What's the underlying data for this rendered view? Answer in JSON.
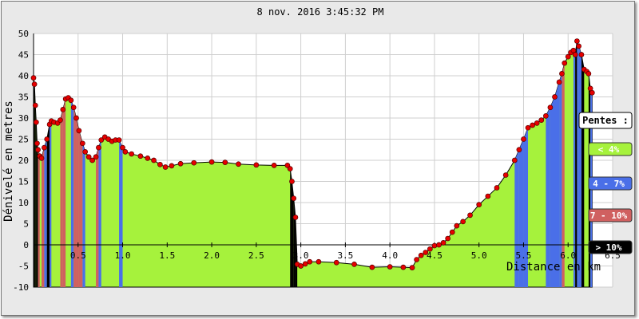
{
  "chart_data": {
    "type": "area",
    "title": "8 nov. 2016 3:45:32 PM",
    "xlabel": "Distance en km",
    "ylabel": "Dénivelé en metres",
    "xlim": [
      0,
      6.5
    ],
    "ylim": [
      -10,
      50
    ],
    "x_ticks": [
      "0.5",
      "1.0",
      "1.5",
      "2.0",
      "2.5",
      "3.0",
      "3.5",
      "4.0",
      "4.5",
      "5.0",
      "5.5",
      "6.0",
      "6.5"
    ],
    "y_ticks": [
      "50",
      "45",
      "40",
      "35",
      "30",
      "25",
      "20",
      "15",
      "10",
      "5",
      "0",
      "-5",
      "-10"
    ],
    "grid": true,
    "profile": [
      [
        0.0,
        39.5
      ],
      [
        0.01,
        38
      ],
      [
        0.02,
        33
      ],
      [
        0.03,
        29
      ],
      [
        0.04,
        24
      ],
      [
        0.05,
        22.5
      ],
      [
        0.07,
        21
      ],
      [
        0.09,
        20.5
      ],
      [
        0.12,
        23
      ],
      [
        0.15,
        25
      ],
      [
        0.18,
        28.5
      ],
      [
        0.2,
        29.3
      ],
      [
        0.23,
        29
      ],
      [
        0.27,
        28.8
      ],
      [
        0.3,
        29.5
      ],
      [
        0.33,
        32
      ],
      [
        0.36,
        34.5
      ],
      [
        0.39,
        34.8
      ],
      [
        0.42,
        34.2
      ],
      [
        0.45,
        32.5
      ],
      [
        0.48,
        30
      ],
      [
        0.51,
        27
      ],
      [
        0.55,
        24
      ],
      [
        0.58,
        22
      ],
      [
        0.62,
        20.8
      ],
      [
        0.66,
        20
      ],
      [
        0.7,
        20.8
      ],
      [
        0.73,
        23
      ],
      [
        0.76,
        24.8
      ],
      [
        0.8,
        25.5
      ],
      [
        0.84,
        25
      ],
      [
        0.88,
        24.5
      ],
      [
        0.92,
        24.8
      ],
      [
        0.96,
        24.8
      ],
      [
        1.0,
        23
      ],
      [
        1.03,
        22
      ],
      [
        1.1,
        21.5
      ],
      [
        1.2,
        21
      ],
      [
        1.28,
        20.5
      ],
      [
        1.35,
        20
      ],
      [
        1.42,
        19
      ],
      [
        1.48,
        18.4
      ],
      [
        1.55,
        18.7
      ],
      [
        1.65,
        19.2
      ],
      [
        1.8,
        19.4
      ],
      [
        2.0,
        19.6
      ],
      [
        2.15,
        19.5
      ],
      [
        2.3,
        19.1
      ],
      [
        2.5,
        18.9
      ],
      [
        2.7,
        18.8
      ],
      [
        2.85,
        18.8
      ],
      [
        2.88,
        18
      ],
      [
        2.9,
        15
      ],
      [
        2.92,
        11
      ],
      [
        2.94,
        6.5
      ],
      [
        2.96,
        -4.6
      ],
      [
        3.0,
        -5
      ],
      [
        3.05,
        -4.5
      ],
      [
        3.1,
        -4
      ],
      [
        3.2,
        -4
      ],
      [
        3.4,
        -4.2
      ],
      [
        3.6,
        -4.6
      ],
      [
        3.8,
        -5.3
      ],
      [
        4.0,
        -5.2
      ],
      [
        4.15,
        -5.3
      ],
      [
        4.25,
        -5.4
      ],
      [
        4.3,
        -3.5
      ],
      [
        4.35,
        -2.5
      ],
      [
        4.4,
        -1.8
      ],
      [
        4.45,
        -1
      ],
      [
        4.5,
        -0.2
      ],
      [
        4.55,
        0
      ],
      [
        4.6,
        0.5
      ],
      [
        4.65,
        1.5
      ],
      [
        4.7,
        3
      ],
      [
        4.75,
        4.5
      ],
      [
        4.82,
        5.5
      ],
      [
        4.9,
        7
      ],
      [
        5.0,
        9.5
      ],
      [
        5.1,
        11.5
      ],
      [
        5.2,
        13.5
      ],
      [
        5.3,
        16.5
      ],
      [
        5.4,
        20
      ],
      [
        5.45,
        22.5
      ],
      [
        5.5,
        25
      ],
      [
        5.55,
        27.7
      ],
      [
        5.6,
        28.3
      ],
      [
        5.65,
        28.8
      ],
      [
        5.7,
        29.5
      ],
      [
        5.75,
        30.5
      ],
      [
        5.8,
        32.5
      ],
      [
        5.85,
        35
      ],
      [
        5.9,
        38.5
      ],
      [
        5.93,
        40.5
      ],
      [
        5.96,
        43
      ],
      [
        6.0,
        44.5
      ],
      [
        6.03,
        45.5
      ],
      [
        6.06,
        46
      ],
      [
        6.08,
        45
      ],
      [
        6.1,
        48.2
      ],
      [
        6.12,
        47
      ],
      [
        6.15,
        45
      ],
      [
        6.18,
        41.5
      ],
      [
        6.21,
        41
      ],
      [
        6.23,
        40.5
      ],
      [
        6.25,
        37
      ],
      [
        6.27,
        36
      ]
    ],
    "slope_legend": {
      "title": "Pentes :",
      "items": [
        {
          "label": "< 4%",
          "color": "#a6f23c",
          "text_color": "#ffffff"
        },
        {
          "label": "4 - 7%",
          "color": "#4a6fe8",
          "text_color": "#ffffff"
        },
        {
          "label": "7 - 10%",
          "color": "#d06060",
          "text_color": "#ffffff"
        },
        {
          "label": "> 10%",
          "color": "#000000",
          "text_color": "#ffffff"
        }
      ]
    },
    "marker_color": "#e60000"
  }
}
